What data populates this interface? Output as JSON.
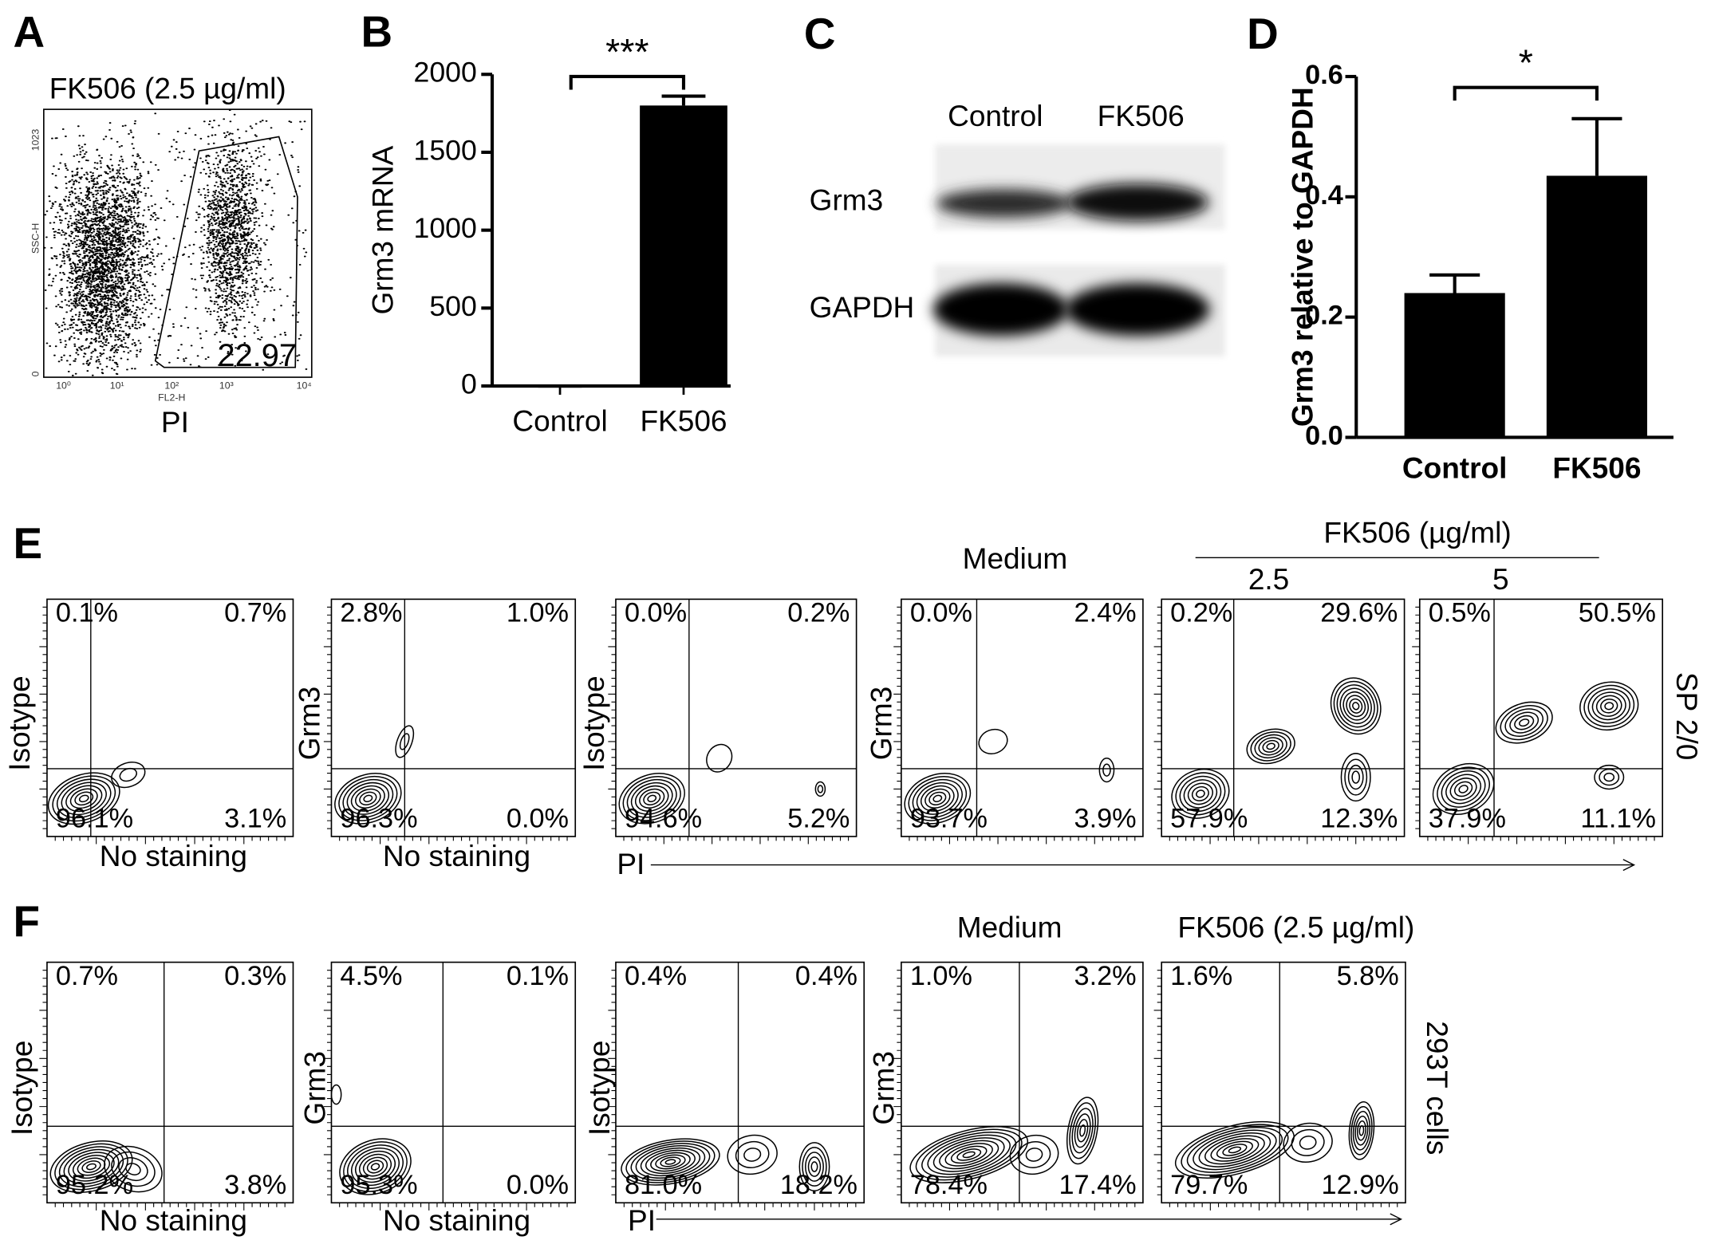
{
  "panel_labels": [
    "A",
    "B",
    "C",
    "D",
    "E",
    "F"
  ],
  "panel_a": {
    "title": "FK506 (2.5 µg/ml)",
    "x_label": "PI",
    "x_axis_name": "FL2-H",
    "y_axis_name": "SSC-H",
    "x_ticks": [
      "10⁰",
      "10¹",
      "10²",
      "10³",
      "10⁴"
    ],
    "y_ticks": [
      "0",
      "1023"
    ],
    "gate_value": "22.97"
  },
  "chart_data": [
    {
      "type": "bar",
      "y_label": "Grm3 mRNA",
      "categories": [
        "Control",
        "FK506"
      ],
      "values": [
        0,
        1800
      ],
      "errors": [
        0,
        60
      ],
      "color": "#000000",
      "ylim": [
        0,
        2000
      ],
      "yticks": [
        0,
        500,
        1000,
        1500,
        2000
      ],
      "annotation": "***"
    },
    {
      "type": "bar",
      "y_label": "Grm3 relative to GAPDH",
      "categories": [
        "Control",
        "FK506"
      ],
      "values": [
        0.24,
        0.435
      ],
      "errors": [
        0.03,
        0.095
      ],
      "color": "#000000",
      "ylim": [
        0,
        0.6
      ],
      "yticks": [
        {
          "value": 0,
          "label": "0.0"
        },
        0.2,
        0.4,
        0.6
      ],
      "annotation": "*"
    }
  ],
  "panel_c": {
    "lanes": [
      "Control",
      "FK506"
    ],
    "rows": [
      "Grm3",
      "GAPDH"
    ]
  },
  "panel_e": {
    "medium": "Medium",
    "treatment": "FK506 (µg/ml)",
    "doses": [
      "2.5",
      "5"
    ],
    "axis_label": "PI",
    "row_label": "SP 2/0",
    "plots": [
      {
        "y_label": "Isotype",
        "x_label": "No staining",
        "quadrants": [
          "0.1%",
          "0.7%",
          "96.1%",
          "3.1%"
        ]
      },
      {
        "y_label": "Grm3",
        "x_label": "No staining",
        "quadrants": [
          "2.8%",
          "1.0%",
          "96.3%",
          "0.0%"
        ]
      },
      {
        "y_label": "Isotype",
        "quadrants": [
          "0.0%",
          "0.2%",
          "94.6%",
          "5.2%"
        ]
      },
      {
        "y_label": "Grm3",
        "quadrants": [
          "0.0%",
          "2.4%",
          "93.7%",
          "3.9%"
        ]
      },
      {
        "quadrants": [
          "0.2%",
          "29.6%",
          "57.9%",
          "12.3%"
        ]
      },
      {
        "quadrants": [
          "0.5%",
          "50.5%",
          "37.9%",
          "11.1%"
        ]
      }
    ]
  },
  "panel_f": {
    "medium": "Medium",
    "treatment": "FK506 (2.5 µg/ml)",
    "axis_label": "PI",
    "row_label": "293T cells",
    "plots": [
      {
        "y_label": "Isotype",
        "x_label": "No staining",
        "quadrants": [
          "0.7%",
          "0.3%",
          "95.2%",
          "3.8%"
        ]
      },
      {
        "y_label": "Grm3",
        "x_label": "No staining",
        "quadrants": [
          "4.5%",
          "0.1%",
          "95.3%",
          "0.0%"
        ]
      },
      {
        "y_label": "Isotype",
        "quadrants": [
          "0.4%",
          "0.4%",
          "81.0%",
          "18.2%"
        ]
      },
      {
        "y_label": "Grm3",
        "quadrants": [
          "1.0%",
          "3.2%",
          "78.4%",
          "17.4%"
        ]
      },
      {
        "quadrants": [
          "1.6%",
          "5.8%",
          "79.7%",
          "12.9%"
        ]
      }
    ]
  }
}
